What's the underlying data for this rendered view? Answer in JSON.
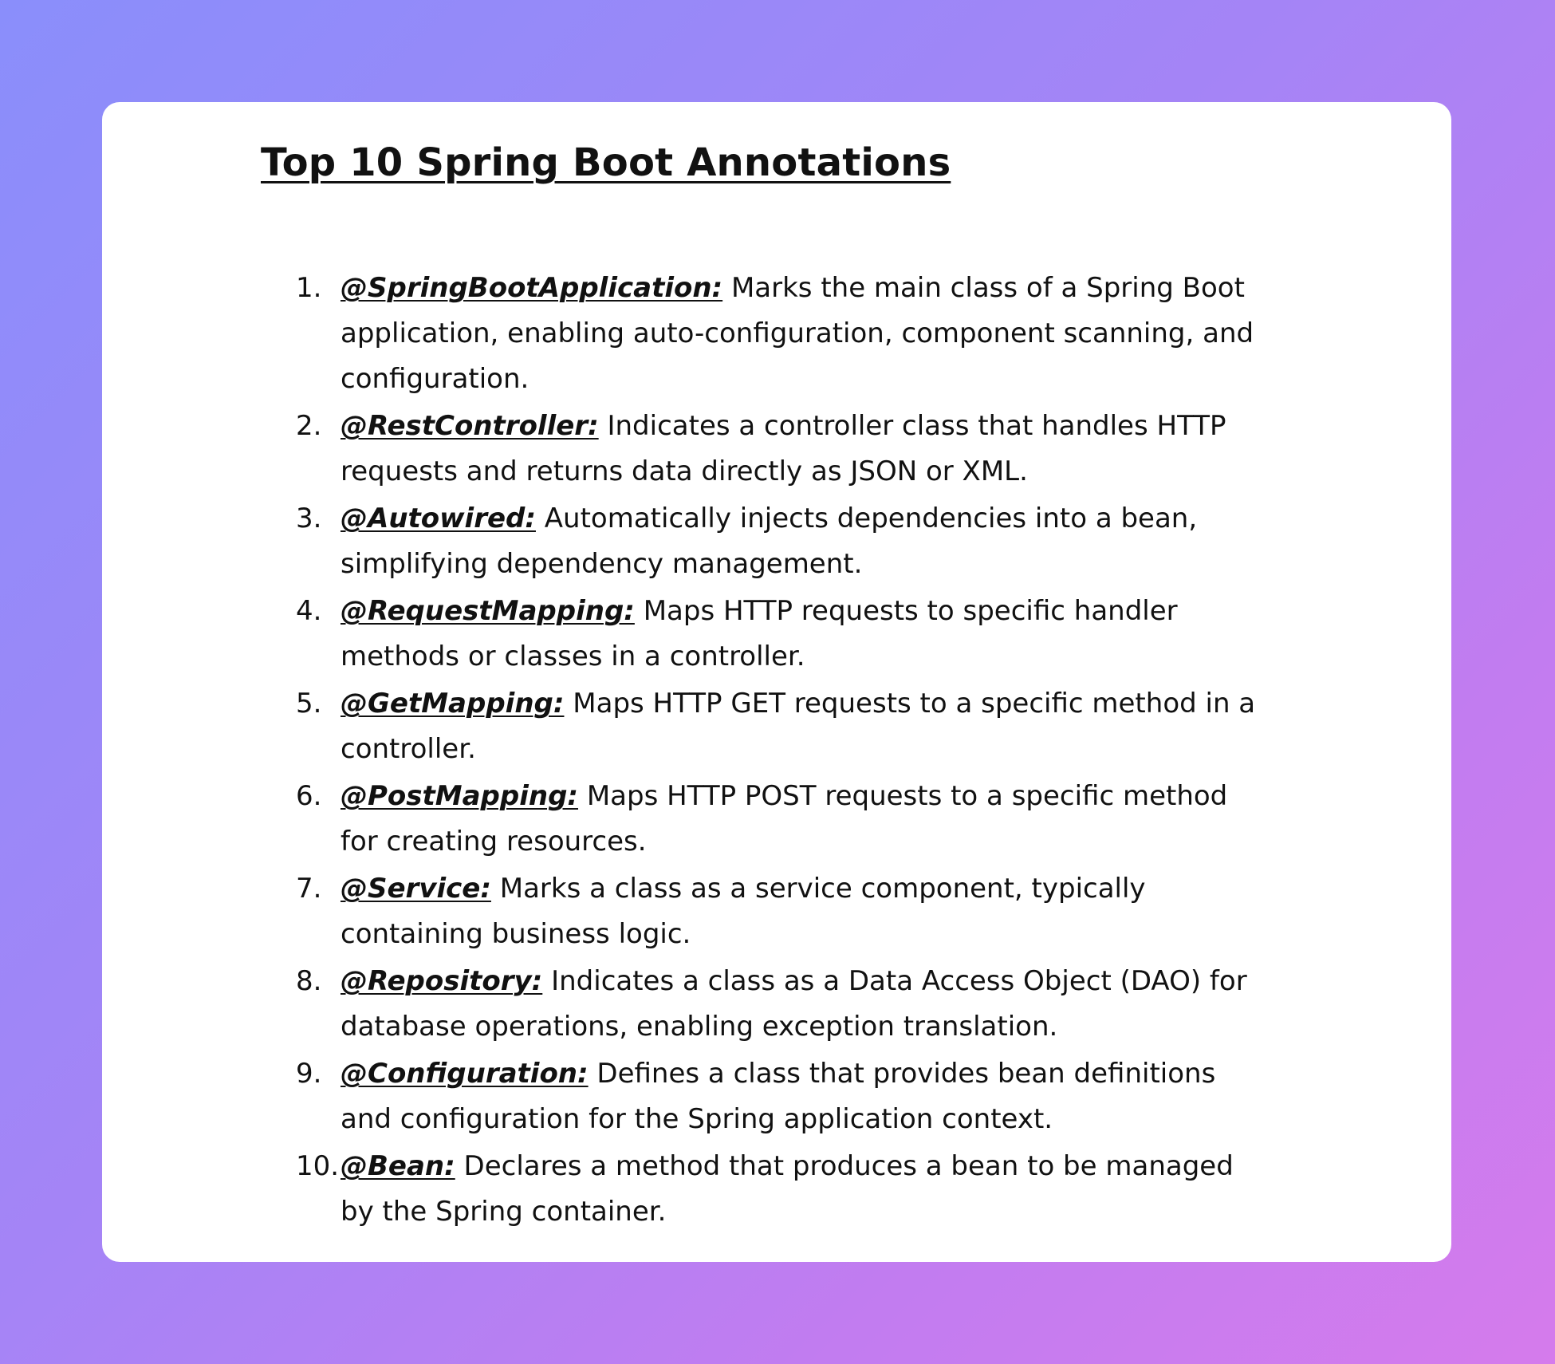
{
  "title": "Top 10 Spring Boot Annotations",
  "annotations": [
    {
      "number": "1.",
      "name": "@SpringBootApplication:",
      "description": "Marks the main class of a Spring Boot application, enabling auto-configuration, component scanning, and configuration."
    },
    {
      "number": "2.",
      "name": "@RestController:",
      "description": "Indicates a controller class that handles HTTP requests and returns data directly as JSON or XML."
    },
    {
      "number": "3.",
      "name": "@Autowired:",
      "description": "Automatically injects dependencies into a bean, simplifying dependency management."
    },
    {
      "number": "4.",
      "name": "@RequestMapping:",
      "description": "Maps HTTP requests to specific handler methods or classes in a controller."
    },
    {
      "number": "5.",
      "name": "@GetMapping:",
      "description": "Maps HTTP GET requests to a specific method in a controller."
    },
    {
      "number": "6.",
      "name": "@PostMapping:",
      "description": "Maps HTTP POST requests to a specific method for creating resources."
    },
    {
      "number": "7.",
      "name": "@Service:",
      "description": "Marks a class as a service component, typically containing business logic."
    },
    {
      "number": "8.",
      "name": "@Repository:",
      "description": "Indicates a class as a Data Access Object (DAO) for database operations, enabling exception translation."
    },
    {
      "number": "9.",
      "name": "@Configuration:",
      "description": "Defines a class that provides bean definitions and configuration for the Spring application context."
    },
    {
      "number": "10.",
      "name": "@Bean:",
      "description": "Declares a method that produces a bean to be managed by the Spring container."
    }
  ]
}
